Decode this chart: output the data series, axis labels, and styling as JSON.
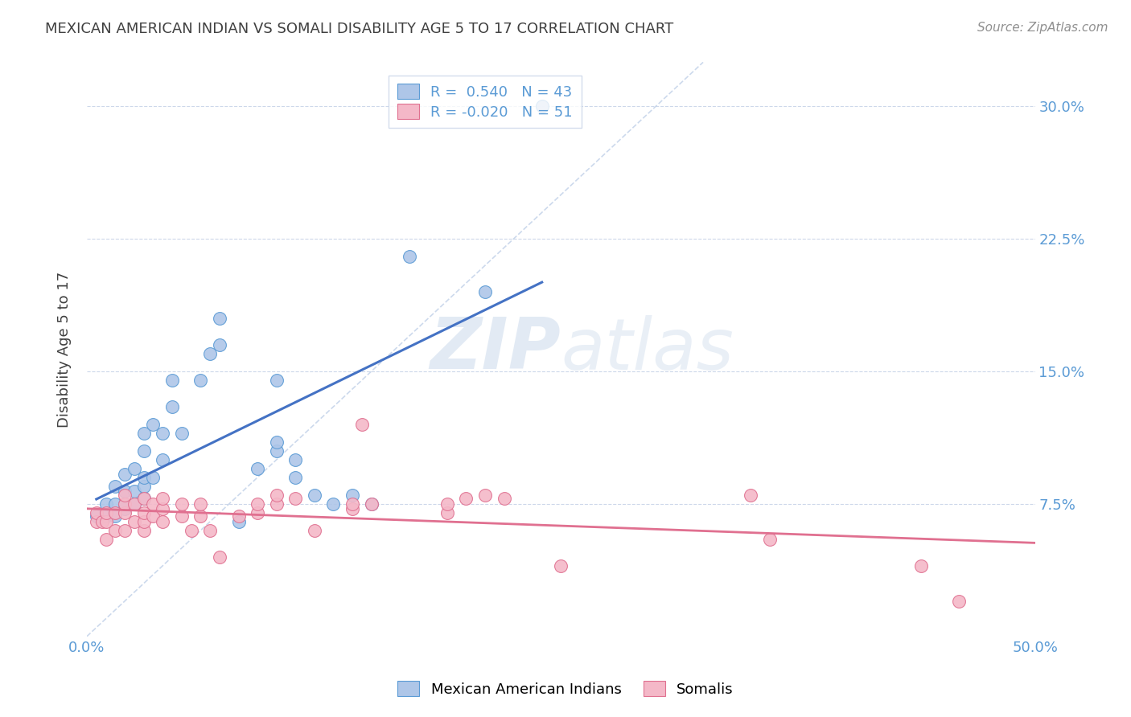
{
  "title": "MEXICAN AMERICAN INDIAN VS SOMALI DISABILITY AGE 5 TO 17 CORRELATION CHART",
  "source": "Source: ZipAtlas.com",
  "ylabel": "Disability Age 5 to 17",
  "xlim": [
    0.0,
    0.5
  ],
  "ylim": [
    0.0,
    0.325
  ],
  "yticks": [
    0.075,
    0.15,
    0.225,
    0.3
  ],
  "yticklabels": [
    "7.5%",
    "15.0%",
    "22.5%",
    "30.0%"
  ],
  "xtick_positions": [
    0.0,
    0.1,
    0.2,
    0.3,
    0.4,
    0.5
  ],
  "xticklabels": [
    "0.0%",
    "",
    "",
    "",
    "",
    "50.0%"
  ],
  "R_blue": 0.54,
  "N_blue": 43,
  "R_pink": -0.02,
  "N_pink": 51,
  "legend_labels": [
    "Mexican American Indians",
    "Somalis"
  ],
  "blue_scatter_color": "#aec6e8",
  "blue_edge_color": "#5b9bd5",
  "pink_scatter_color": "#f4b8c8",
  "pink_edge_color": "#e07090",
  "blue_line_color": "#4472c4",
  "pink_line_color": "#e07090",
  "diag_line_color": "#c0d0e8",
  "axis_tick_color": "#5b9bd5",
  "ylabel_color": "#404040",
  "title_color": "#404040",
  "source_color": "#909090",
  "watermark_color": "#cfdded",
  "grid_color": "#c8d4e8",
  "blue_x": [
    0.005,
    0.01,
    0.01,
    0.015,
    0.015,
    0.015,
    0.02,
    0.02,
    0.02,
    0.02,
    0.025,
    0.025,
    0.025,
    0.03,
    0.03,
    0.03,
    0.03,
    0.03,
    0.035,
    0.035,
    0.04,
    0.04,
    0.045,
    0.045,
    0.05,
    0.06,
    0.065,
    0.07,
    0.07,
    0.08,
    0.09,
    0.1,
    0.1,
    0.1,
    0.11,
    0.11,
    0.12,
    0.13,
    0.14,
    0.15,
    0.17,
    0.21,
    0.24
  ],
  "blue_y": [
    0.068,
    0.068,
    0.075,
    0.068,
    0.075,
    0.085,
    0.072,
    0.075,
    0.082,
    0.092,
    0.075,
    0.082,
    0.095,
    0.078,
    0.085,
    0.09,
    0.105,
    0.115,
    0.09,
    0.12,
    0.1,
    0.115,
    0.13,
    0.145,
    0.115,
    0.145,
    0.16,
    0.165,
    0.18,
    0.065,
    0.095,
    0.105,
    0.11,
    0.145,
    0.09,
    0.1,
    0.08,
    0.075,
    0.08,
    0.075,
    0.215,
    0.195,
    0.3
  ],
  "pink_x": [
    0.005,
    0.005,
    0.008,
    0.01,
    0.01,
    0.01,
    0.015,
    0.015,
    0.02,
    0.02,
    0.02,
    0.02,
    0.025,
    0.025,
    0.03,
    0.03,
    0.03,
    0.03,
    0.035,
    0.035,
    0.04,
    0.04,
    0.04,
    0.05,
    0.05,
    0.055,
    0.06,
    0.06,
    0.065,
    0.07,
    0.08,
    0.09,
    0.09,
    0.1,
    0.1,
    0.11,
    0.12,
    0.14,
    0.14,
    0.145,
    0.15,
    0.19,
    0.19,
    0.2,
    0.21,
    0.22,
    0.25,
    0.35,
    0.36,
    0.44,
    0.46
  ],
  "pink_y": [
    0.065,
    0.07,
    0.065,
    0.055,
    0.065,
    0.07,
    0.06,
    0.07,
    0.06,
    0.07,
    0.075,
    0.08,
    0.065,
    0.075,
    0.06,
    0.065,
    0.07,
    0.078,
    0.068,
    0.075,
    0.065,
    0.072,
    0.078,
    0.068,
    0.075,
    0.06,
    0.068,
    0.075,
    0.06,
    0.045,
    0.068,
    0.07,
    0.075,
    0.075,
    0.08,
    0.078,
    0.06,
    0.072,
    0.075,
    0.12,
    0.075,
    0.07,
    0.075,
    0.078,
    0.08,
    0.078,
    0.04,
    0.08,
    0.055,
    0.04,
    0.02
  ]
}
